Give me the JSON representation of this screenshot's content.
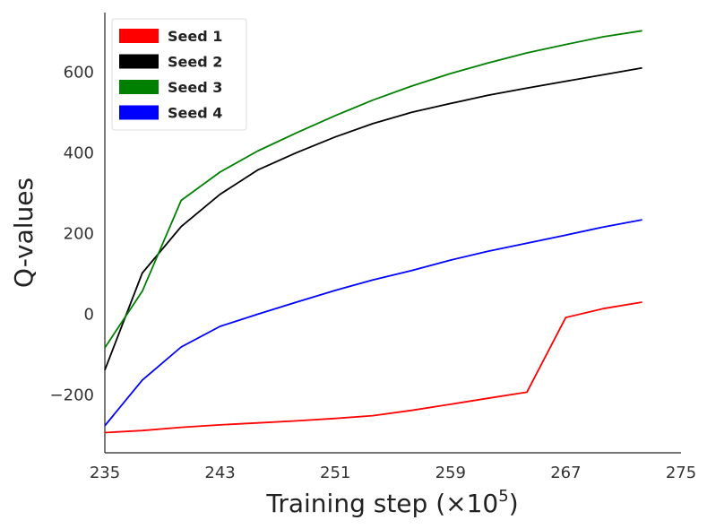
{
  "chart_data": {
    "type": "line",
    "xlabel": "Training step (×10",
    "xlabel_exponent": "5",
    "xlabel_close": ")",
    "ylabel": "Q-values",
    "xlim": [
      235,
      275
    ],
    "ylim": [
      -345,
      745
    ],
    "xticks": [
      "235",
      "243",
      "251",
      "259",
      "267",
      "275"
    ],
    "yticks": [
      "−200",
      "0",
      "200",
      "400",
      "600"
    ],
    "legend_position": "top-left",
    "grid": false,
    "x": [
      235,
      237.6,
      240.3,
      243,
      245.6,
      248.3,
      251,
      253.6,
      256.3,
      259,
      261.6,
      264.3,
      267,
      269.6,
      272.3
    ],
    "series": [
      {
        "name": "Seed 1",
        "color": "#ff0000",
        "values": [
          -295,
          -290,
          -282,
          -276,
          -271,
          -266,
          -260,
          -253,
          -240,
          -225,
          -210,
          -195,
          -10,
          12,
          28
        ]
      },
      {
        "name": "Seed 2",
        "color": "#000000",
        "values": [
          -140,
          100,
          215,
          295,
          355,
          398,
          437,
          470,
          498,
          520,
          540,
          558,
          575,
          591,
          608
        ]
      },
      {
        "name": "Seed 3",
        "color": "#008000",
        "values": [
          -85,
          55,
          280,
          350,
          402,
          447,
          490,
          528,
          563,
          594,
          620,
          645,
          666,
          685,
          700
        ]
      },
      {
        "name": "Seed 4",
        "color": "#0000ff",
        "values": [
          -278,
          -165,
          -83,
          -32,
          -2,
          28,
          57,
          83,
          106,
          132,
          154,
          174,
          194,
          214,
          232
        ]
      }
    ]
  }
}
